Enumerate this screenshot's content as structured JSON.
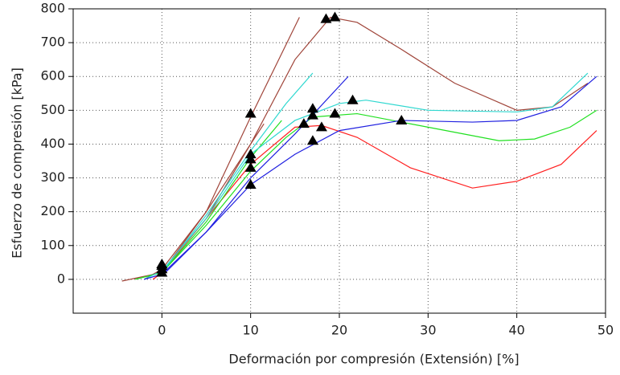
{
  "chart_data": {
    "type": "line",
    "x_label": "Deformación por compresión (Extensión) [%]",
    "y_label": "Esfuerzo de compresión [kPa]",
    "xlim": [
      -10,
      50
    ],
    "xticks": [
      0,
      10,
      20,
      30,
      40,
      50
    ],
    "ylim": [
      -100,
      800
    ],
    "yticks": [
      0,
      100,
      200,
      300,
      400,
      500,
      600,
      700,
      800
    ],
    "grid": true,
    "series": [
      {
        "color": "#a0453a",
        "x": [
          -4.5,
          0,
          5,
          10,
          15.5
        ],
        "values": [
          -5,
          20,
          200,
          480,
          775
        ]
      },
      {
        "color": "#a0453a",
        "x": [
          -2,
          0,
          5,
          11.5
        ],
        "values": [
          0,
          30,
          200,
          460
        ]
      },
      {
        "color": "#a0453a",
        "x": [
          -1,
          0,
          5,
          10,
          15,
          19,
          22,
          27,
          33,
          40,
          44,
          48
        ],
        "values": [
          0,
          20,
          180,
          400,
          650,
          775,
          760,
          680,
          580,
          500,
          510,
          580
        ]
      },
      {
        "color": "#ff2020",
        "x": [
          -1,
          0,
          5,
          10,
          15,
          18,
          22,
          28,
          35,
          40,
          45,
          49
        ],
        "values": [
          0,
          20,
          180,
          340,
          450,
          455,
          420,
          330,
          270,
          290,
          340,
          440
        ]
      },
      {
        "color": "#20e020",
        "x": [
          -3,
          0,
          5,
          10,
          14,
          17,
          22,
          30,
          38,
          42,
          46,
          49
        ],
        "values": [
          0,
          20,
          160,
          320,
          420,
          480,
          490,
          450,
          410,
          415,
          450,
          500
        ]
      },
      {
        "color": "#20e020",
        "x": [
          0,
          5,
          10,
          13.5
        ],
        "values": [
          20,
          170,
          360,
          470
        ]
      },
      {
        "color": "#30d8d0",
        "x": [
          -2,
          0,
          5,
          10,
          15,
          20,
          23,
          30,
          40,
          44,
          48
        ],
        "values": [
          0,
          25,
          180,
          370,
          470,
          520,
          530,
          500,
          495,
          510,
          610
        ]
      },
      {
        "color": "#30d8d0",
        "x": [
          0,
          5,
          10,
          14,
          17
        ],
        "values": [
          20,
          190,
          380,
          520,
          610
        ]
      },
      {
        "color": "#2020e0",
        "x": [
          -2,
          0,
          5,
          10,
          15,
          20,
          27,
          35,
          40,
          45,
          49
        ],
        "values": [
          0,
          15,
          140,
          280,
          370,
          440,
          470,
          465,
          470,
          510,
          600
        ]
      },
      {
        "color": "#2020e0",
        "x": [
          0,
          5,
          10,
          15,
          21
        ],
        "values": [
          10,
          140,
          300,
          430,
          600
        ]
      }
    ],
    "markers": {
      "color": "#000000",
      "x": [
        0,
        0,
        0,
        0,
        10,
        10,
        10,
        10,
        10,
        16,
        17,
        17,
        17,
        18,
        18.5,
        19.5,
        19.5,
        21.5,
        27
      ],
      "values": [
        20,
        30,
        40,
        45,
        490,
        370,
        355,
        330,
        280,
        460,
        505,
        485,
        410,
        450,
        770,
        775,
        490,
        530,
        470
      ]
    }
  }
}
